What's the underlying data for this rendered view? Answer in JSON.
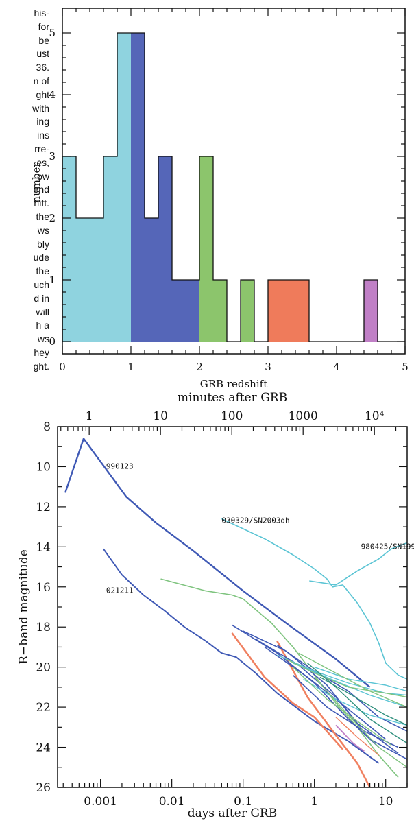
{
  "left_text_lines": [
    "his-",
    "for",
    "be",
    "ust",
    "36.",
    "n of",
    "ght",
    "with",
    "ing",
    "ins",
    "rre-",
    "es,",
    "ow",
    "end",
    "hift.",
    "the",
    "ws",
    "bly",
    "ude",
    "the",
    "uch",
    "d in",
    "will",
    "h a",
    "ws",
    "hey",
    "ght."
  ],
  "chart_data": [
    {
      "type": "bar",
      "subtype": "histogram",
      "xlabel": "GRB redshift",
      "ylabel": "number",
      "xlim": [
        0,
        5
      ],
      "ylim": [
        -0.2,
        5.4
      ],
      "x_ticks": [
        "0",
        "1",
        "2",
        "3",
        "4",
        "5"
      ],
      "y_ticks": [
        "0",
        "1",
        "2",
        "3",
        "4",
        "5"
      ],
      "bin_width": 0.2,
      "bins": [
        {
          "x0": 0.0,
          "count": 3,
          "color": "#8fd3df"
        },
        {
          "x0": 0.2,
          "count": 2,
          "color": "#8fd3df"
        },
        {
          "x0": 0.4,
          "count": 2,
          "color": "#8fd3df"
        },
        {
          "x0": 0.6,
          "count": 3,
          "color": "#8fd3df"
        },
        {
          "x0": 0.8,
          "count": 5,
          "color": "#8fd3df"
        },
        {
          "x0": 1.0,
          "count": 5,
          "color": "#5566b8"
        },
        {
          "x0": 1.2,
          "count": 2,
          "color": "#5566b8"
        },
        {
          "x0": 1.4,
          "count": 3,
          "color": "#5566b8"
        },
        {
          "x0": 1.6,
          "count": 1,
          "color": "#5566b8"
        },
        {
          "x0": 1.8,
          "count": 1,
          "color": "#5566b8"
        },
        {
          "x0": 2.0,
          "count": 3,
          "color": "#8cc56c"
        },
        {
          "x0": 2.2,
          "count": 1,
          "color": "#8cc56c"
        },
        {
          "x0": 2.4,
          "count": 0,
          "color": "#8cc56c"
        },
        {
          "x0": 2.6,
          "count": 1,
          "color": "#8cc56c"
        },
        {
          "x0": 2.8,
          "count": 0,
          "color": "#8cc56c"
        },
        {
          "x0": 3.0,
          "count": 1,
          "color": "#ef7b5b"
        },
        {
          "x0": 3.2,
          "count": 1,
          "color": "#ef7b5b"
        },
        {
          "x0": 3.4,
          "count": 1,
          "color": "#ef7b5b"
        },
        {
          "x0": 3.6,
          "count": 0,
          "color": "#ef7b5b"
        },
        {
          "x0": 3.8,
          "count": 0,
          "color": "#ef7b5b"
        },
        {
          "x0": 4.0,
          "count": 0,
          "color": "#c07fc6"
        },
        {
          "x0": 4.2,
          "count": 0,
          "color": "#c07fc6"
        },
        {
          "x0": 4.4,
          "count": 1,
          "color": "#c07fc6"
        },
        {
          "x0": 4.6,
          "count": 0,
          "color": "#c07fc6"
        },
        {
          "x0": 4.8,
          "count": 0,
          "color": "#c07fc6"
        }
      ],
      "grid": false
    },
    {
      "type": "line",
      "xscale": "log",
      "xlabel": "days after GRB",
      "x_top_label": "minutes after GRB",
      "ylabel": "R−band magnitude",
      "xlim": [
        0.00025,
        20
      ],
      "ylim": [
        26,
        8
      ],
      "y_inverted": true,
      "x_ticks": [
        {
          "value": 0.001,
          "label": "0.001"
        },
        {
          "value": 0.01,
          "label": "0.01"
        },
        {
          "value": 0.1,
          "label": "0.1"
        },
        {
          "value": 1,
          "label": "1"
        },
        {
          "value": 10,
          "label": "10"
        }
      ],
      "x_top_ticks": [
        {
          "minutes": 1,
          "label": "1"
        },
        {
          "minutes": 10,
          "label": "10"
        },
        {
          "minutes": 100,
          "label": "100"
        },
        {
          "minutes": 1000,
          "label": "1000"
        },
        {
          "minutes": 10000,
          "label": "10⁴"
        }
      ],
      "y_ticks": [
        "8",
        "10",
        "12",
        "14",
        "16",
        "18",
        "20",
        "22",
        "24",
        "26"
      ],
      "annotations": [
        {
          "text": "990123",
          "x": 0.0012,
          "y": 10.1
        },
        {
          "text": "030329/SN2003dh",
          "x": 0.05,
          "y": 12.8
        },
        {
          "text": "980425/SN1998bw",
          "x": 4.5,
          "y": 14.1
        },
        {
          "text": "021211",
          "x": 0.0012,
          "y": 16.3
        }
      ],
      "series": [
        {
          "name": "990123",
          "color": "#3f59b5",
          "width": 2.4,
          "points": [
            [
              0.00032,
              11.3
            ],
            [
              0.00058,
              8.6
            ],
            [
              0.0013,
              10.3
            ],
            [
              0.0023,
              11.5
            ],
            [
              0.006,
              12.8
            ],
            [
              0.02,
              14.2
            ],
            [
              0.1,
              16.2
            ],
            [
              0.4,
              17.8
            ],
            [
              2,
              19.6
            ],
            [
              6,
              21.0
            ]
          ]
        },
        {
          "name": "021211",
          "color": "#3f59b5",
          "width": 2,
          "points": [
            [
              0.0011,
              14.1
            ],
            [
              0.002,
              15.4
            ],
            [
              0.004,
              16.4
            ],
            [
              0.008,
              17.2
            ],
            [
              0.015,
              18.0
            ],
            [
              0.03,
              18.7
            ],
            [
              0.05,
              19.3
            ],
            [
              0.08,
              19.5
            ],
            [
              0.15,
              20.3
            ],
            [
              0.3,
              21.3
            ],
            [
              1,
              22.7
            ],
            [
              3,
              23.7
            ],
            [
              8,
              24.8
            ]
          ]
        },
        {
          "name": "030329/SN2003dh",
          "color": "#5ac4d4",
          "width": 1.6,
          "points": [
            [
              0.05,
              12.6
            ],
            [
              0.1,
              13.1
            ],
            [
              0.2,
              13.6
            ],
            [
              0.5,
              14.4
            ],
            [
              1.0,
              15.1
            ],
            [
              1.5,
              15.6
            ],
            [
              1.8,
              16.0
            ],
            [
              2.5,
              15.9
            ],
            [
              4,
              16.8
            ],
            [
              6,
              17.8
            ],
            [
              8,
              18.8
            ],
            [
              10,
              19.8
            ],
            [
              15,
              20.4
            ],
            [
              20,
              20.6
            ]
          ]
        },
        {
          "name": "980425/SN1998bw",
          "color": "#5ac4d4",
          "width": 1.6,
          "points": [
            [
              0.85,
              15.7
            ],
            [
              2,
              15.9
            ],
            [
              4,
              15.2
            ],
            [
              8,
              14.6
            ],
            [
              12,
              14.1
            ],
            [
              20,
              13.8
            ]
          ]
        },
        {
          "name": "",
          "color": "#7fc47f",
          "width": 1.6,
          "points": [
            [
              0.007,
              15.6
            ],
            [
              0.03,
              16.2
            ],
            [
              0.07,
              16.4
            ],
            [
              0.1,
              16.6
            ],
            [
              0.25,
              17.8
            ],
            [
              0.5,
              19.0
            ],
            [
              1,
              20.4
            ],
            [
              2,
              21.8
            ],
            [
              4,
              23.0
            ],
            [
              8,
              24.4
            ],
            [
              15,
              25.5
            ]
          ]
        },
        {
          "name": "",
          "color": "#f08060",
          "width": 2.6,
          "points": [
            [
              0.07,
              18.3
            ],
            [
              0.2,
              20.5
            ],
            [
              0.5,
              21.8
            ],
            [
              1,
              22.5
            ],
            [
              2.5,
              24.1
            ]
          ]
        },
        {
          "name": "",
          "color": "#f08060",
          "width": 2.6,
          "points": [
            [
              0.3,
              18.7
            ],
            [
              0.8,
              21.5
            ],
            [
              2,
              23.4
            ],
            [
              4,
              24.8
            ],
            [
              6,
              26.0
            ]
          ]
        },
        {
          "name": "",
          "color": "#3f59b5",
          "width": 1.6,
          "points": [
            [
              0.07,
              17.9
            ],
            [
              0.3,
              19.3
            ],
            [
              1,
              20.8
            ],
            [
              3,
              22.6
            ],
            [
              8,
              24.0
            ]
          ]
        },
        {
          "name": "",
          "color": "#3f59b5",
          "width": 1.6,
          "points": [
            [
              0.1,
              18.2
            ],
            [
              0.4,
              19.2
            ],
            [
              1.5,
              20.9
            ],
            [
              4,
              22.8
            ],
            [
              15,
              24.3
            ]
          ]
        },
        {
          "name": "",
          "color": "#3f59b5",
          "width": 1.6,
          "points": [
            [
              0.15,
              18.6
            ],
            [
              0.6,
              19.9
            ],
            [
              2,
              21.5
            ],
            [
              6,
              23.6
            ],
            [
              20,
              24.6
            ]
          ]
        },
        {
          "name": "",
          "color": "#3f59b5",
          "width": 1.6,
          "points": [
            [
              0.2,
              19.0
            ],
            [
              0.8,
              20.5
            ],
            [
              3,
              22.1
            ],
            [
              10,
              23.6
            ]
          ]
        },
        {
          "name": "",
          "color": "#3f59b5",
          "width": 1.6,
          "points": [
            [
              0.3,
              18.9
            ],
            [
              1,
              20.2
            ],
            [
              3,
              21.2
            ],
            [
              8,
              22.5
            ],
            [
              20,
              23.2
            ]
          ]
        },
        {
          "name": "",
          "color": "#3f59b5",
          "width": 1.6,
          "points": [
            [
              0.5,
              20.4
            ],
            [
              1.5,
              22.0
            ],
            [
              5,
              23.2
            ],
            [
              15,
              24.0
            ]
          ]
        },
        {
          "name": "",
          "color": "#5ac4d4",
          "width": 1.4,
          "points": [
            [
              0.3,
              19.4
            ],
            [
              1,
              20.2
            ],
            [
              3,
              20.8
            ],
            [
              10,
              21.3
            ],
            [
              20,
              21.4
            ]
          ]
        },
        {
          "name": "",
          "color": "#5ac4d4",
          "width": 1.4,
          "points": [
            [
              0.5,
              19.8
            ],
            [
              2,
              20.7
            ],
            [
              6,
              21.4
            ],
            [
              20,
              22.0
            ]
          ]
        },
        {
          "name": "",
          "color": "#5ac4d4",
          "width": 1.4,
          "points": [
            [
              0.7,
              20.6
            ],
            [
              2,
              21.6
            ],
            [
              6,
              22.4
            ],
            [
              20,
              22.9
            ]
          ]
        },
        {
          "name": "",
          "color": "#5ac4d4",
          "width": 1.4,
          "points": [
            [
              1,
              20.0
            ],
            [
              3,
              20.6
            ],
            [
              10,
              20.9
            ],
            [
              20,
              21.2
            ]
          ]
        },
        {
          "name": "",
          "color": "#7fc47f",
          "width": 1.4,
          "points": [
            [
              0.4,
              19.6
            ],
            [
              1,
              20.3
            ],
            [
              3,
              21.0
            ],
            [
              10,
              21.3
            ],
            [
              20,
              21.5
            ]
          ]
        },
        {
          "name": "",
          "color": "#7fc47f",
          "width": 1.4,
          "points": [
            [
              0.5,
              20.0
            ],
            [
              1.5,
              21.6
            ],
            [
              4,
              22.7
            ],
            [
              12,
              23.9
            ]
          ]
        },
        {
          "name": "",
          "color": "#7fc47f",
          "width": 1.4,
          "points": [
            [
              1,
              20.5
            ],
            [
              3,
              22.4
            ],
            [
              8,
              24.0
            ],
            [
              20,
              25.0
            ]
          ]
        },
        {
          "name": "",
          "color": "#7fc47f",
          "width": 1.4,
          "points": [
            [
              0.6,
              19.3
            ],
            [
              2,
              20.3
            ],
            [
              6,
              21.2
            ],
            [
              20,
              22.0
            ]
          ]
        },
        {
          "name": "",
          "color": "#2e8f7c",
          "width": 1.4,
          "points": [
            [
              0.8,
              19.8
            ],
            [
              2,
              21.0
            ],
            [
              6,
              22.6
            ],
            [
              20,
              23.8
            ]
          ]
        },
        {
          "name": "",
          "color": "#2e8f7c",
          "width": 1.4,
          "points": [
            [
              1.2,
              20.5
            ],
            [
              3,
              21.3
            ],
            [
              10,
              22.4
            ],
            [
              20,
              22.9
            ]
          ]
        },
        {
          "name": "",
          "color": "#c07fc6",
          "width": 1.8,
          "points": [
            [
              2,
              22.9
            ],
            [
              3.5,
              23.8
            ],
            [
              5,
              24.2
            ]
          ]
        },
        {
          "name": "",
          "color": "#f08060",
          "width": 1.4,
          "points": [
            [
              2,
              22.5
            ],
            [
              4,
              23.5
            ],
            [
              8,
              24.4
            ]
          ]
        }
      ],
      "grid": false
    }
  ]
}
